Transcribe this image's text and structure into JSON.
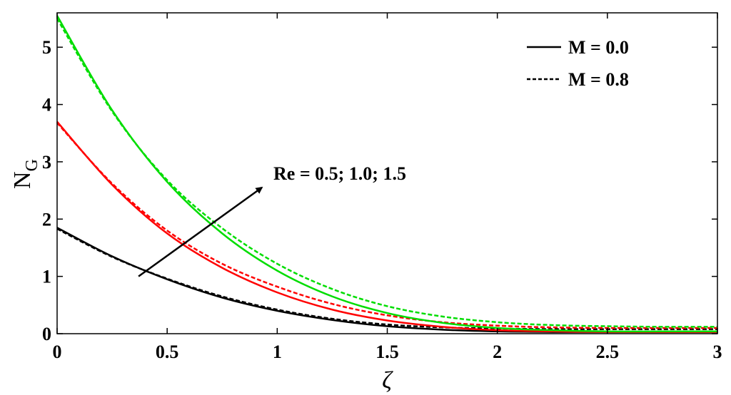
{
  "chart_data": {
    "type": "line",
    "xlabel": "ζ",
    "ylabel": {
      "main": "N",
      "sub": "G"
    },
    "xlim": [
      0,
      3
    ],
    "ylim": [
      0,
      5.6
    ],
    "xticks": [
      {
        "value": 0,
        "label": "0"
      },
      {
        "value": 0.5,
        "label": "0.5"
      },
      {
        "value": 1,
        "label": "1"
      },
      {
        "value": 1.5,
        "label": "1.5"
      },
      {
        "value": 2,
        "label": "2"
      },
      {
        "value": 2.5,
        "label": "2.5"
      },
      {
        "value": 3,
        "label": "3"
      }
    ],
    "yticks": [
      {
        "value": 0,
        "label": "0"
      },
      {
        "value": 1,
        "label": "1"
      },
      {
        "value": 2,
        "label": "2"
      },
      {
        "value": 3,
        "label": "3"
      },
      {
        "value": 4,
        "label": "4"
      },
      {
        "value": 5,
        "label": "5"
      }
    ],
    "grid": false,
    "legend": {
      "position": "top-right",
      "entries": [
        {
          "label": "M = 0.0",
          "style": "solid"
        },
        {
          "label": "M = 0.8",
          "style": "dashed"
        }
      ]
    },
    "annotation": {
      "text": "Re = 0.5; 1.0; 1.5",
      "arrow_from": [
        0.37,
        1.0
      ],
      "arrow_to": [
        0.93,
        2.55
      ]
    },
    "series": [
      {
        "color": "#000000",
        "style": "solid",
        "x": [
          0,
          0.25,
          0.5,
          0.75,
          1.0,
          1.25,
          1.5,
          1.75,
          2.0,
          2.25,
          2.5,
          2.75,
          3.0
        ],
        "y": [
          1.85,
          1.35,
          0.95,
          0.63,
          0.4,
          0.24,
          0.13,
          0.07,
          0.04,
          0.03,
          0.03,
          0.03,
          0.03
        ]
      },
      {
        "color": "#000000",
        "style": "dashed",
        "x": [
          0,
          0.25,
          0.5,
          0.75,
          1.0,
          1.25,
          1.5,
          1.75,
          2.0,
          2.25,
          2.5,
          2.75,
          3.0
        ],
        "y": [
          1.83,
          1.34,
          0.96,
          0.65,
          0.42,
          0.26,
          0.16,
          0.11,
          0.09,
          0.08,
          0.08,
          0.08,
          0.08
        ]
      },
      {
        "color": "#ff0000",
        "style": "solid",
        "x": [
          0,
          0.25,
          0.5,
          0.75,
          1.0,
          1.25,
          1.5,
          1.75,
          2.0,
          2.25,
          2.5,
          2.75,
          3.0
        ],
        "y": [
          3.7,
          2.6,
          1.75,
          1.15,
          0.72,
          0.42,
          0.23,
          0.12,
          0.06,
          0.04,
          0.03,
          0.03,
          0.03
        ]
      },
      {
        "color": "#ff0000",
        "style": "dashed",
        "x": [
          0,
          0.25,
          0.5,
          0.75,
          1.0,
          1.25,
          1.5,
          1.75,
          2.0,
          2.25,
          2.5,
          2.75,
          3.0
        ],
        "y": [
          3.68,
          2.62,
          1.8,
          1.22,
          0.82,
          0.52,
          0.32,
          0.2,
          0.14,
          0.11,
          0.1,
          0.1,
          0.1
        ]
      },
      {
        "color": "#00dd00",
        "style": "solid",
        "x": [
          0,
          0.25,
          0.5,
          0.75,
          1.0,
          1.25,
          1.5,
          1.75,
          2.0,
          2.25,
          2.5,
          2.75,
          3.0
        ],
        "y": [
          5.55,
          3.9,
          2.65,
          1.75,
          1.1,
          0.65,
          0.36,
          0.19,
          0.1,
          0.06,
          0.04,
          0.04,
          0.04
        ]
      },
      {
        "color": "#00dd00",
        "style": "dashed",
        "x": [
          0,
          0.25,
          0.5,
          0.75,
          1.0,
          1.25,
          1.5,
          1.75,
          2.0,
          2.25,
          2.5,
          2.75,
          3.0
        ],
        "y": [
          5.5,
          3.88,
          2.68,
          1.84,
          1.22,
          0.78,
          0.48,
          0.3,
          0.2,
          0.15,
          0.13,
          0.12,
          0.12
        ]
      }
    ]
  }
}
